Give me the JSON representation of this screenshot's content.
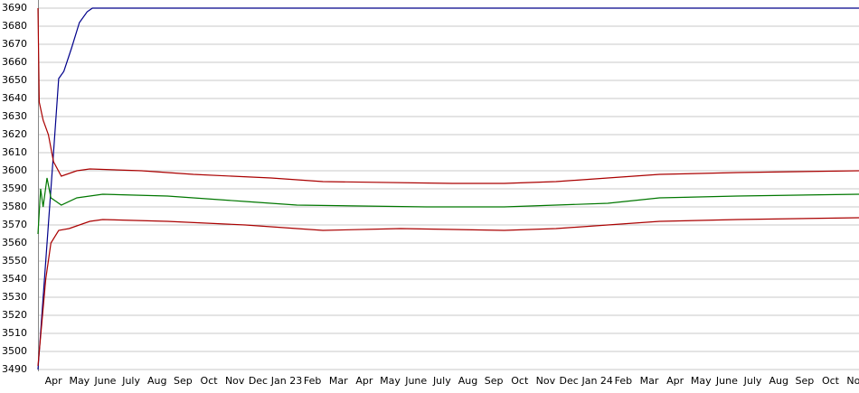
{
  "chart_data": {
    "type": "line",
    "xlim": [
      0,
      31.7
    ],
    "xticks": [
      {
        "value": 0.6,
        "label": "Apr"
      },
      {
        "value": 1.6,
        "label": "May"
      },
      {
        "value": 2.6,
        "label": "June"
      },
      {
        "value": 3.6,
        "label": "July"
      },
      {
        "value": 4.6,
        "label": "Aug"
      },
      {
        "value": 5.6,
        "label": "Sep"
      },
      {
        "value": 6.6,
        "label": "Oct"
      },
      {
        "value": 7.6,
        "label": "Nov"
      },
      {
        "value": 8.5,
        "label": "Dec"
      },
      {
        "value": 9.6,
        "label": "Jan 23"
      },
      {
        "value": 10.6,
        "label": "Feb"
      },
      {
        "value": 11.6,
        "label": "Mar"
      },
      {
        "value": 12.6,
        "label": "Apr"
      },
      {
        "value": 13.6,
        "label": "May"
      },
      {
        "value": 14.6,
        "label": "June"
      },
      {
        "value": 15.6,
        "label": "July"
      },
      {
        "value": 16.6,
        "label": "Aug"
      },
      {
        "value": 17.6,
        "label": "Sep"
      },
      {
        "value": 18.6,
        "label": "Oct"
      },
      {
        "value": 19.6,
        "label": "Nov"
      },
      {
        "value": 20.5,
        "label": "Dec"
      },
      {
        "value": 21.6,
        "label": "Jan 24"
      },
      {
        "value": 22.6,
        "label": "Feb"
      },
      {
        "value": 23.6,
        "label": "Mar"
      },
      {
        "value": 24.6,
        "label": "Apr"
      },
      {
        "value": 25.6,
        "label": "May"
      },
      {
        "value": 26.6,
        "label": "June"
      },
      {
        "value": 27.6,
        "label": "July"
      },
      {
        "value": 28.6,
        "label": "Aug"
      },
      {
        "value": 29.6,
        "label": "Sep"
      },
      {
        "value": 30.6,
        "label": "Oct"
      },
      {
        "value": 31.6,
        "label": "Nov"
      }
    ],
    "ylim": [
      3490,
      3690
    ],
    "yticks": [
      3490,
      3500,
      3510,
      3520,
      3530,
      3540,
      3550,
      3560,
      3570,
      3580,
      3590,
      3600,
      3610,
      3620,
      3630,
      3640,
      3650,
      3660,
      3670,
      3680,
      3690
    ],
    "grid": true,
    "series": [
      {
        "color": "#00008b",
        "x": [
          0,
          0.3,
          0.6,
          0.8,
          1.0,
          1.3,
          1.6,
          1.9,
          2.1,
          31.7
        ],
        "values": [
          3490,
          3550,
          3610,
          3651,
          3655,
          3668,
          3682,
          3688,
          3690,
          3690
        ]
      },
      {
        "color": "#aa0000",
        "x": [
          0,
          0.05,
          0.2,
          0.4,
          0.6,
          0.9,
          1.5,
          2,
          4,
          6,
          9,
          11,
          16,
          18,
          20,
          22,
          24,
          27,
          31.7
        ],
        "values": [
          3690,
          3638,
          3628,
          3620,
          3605,
          3597,
          3600,
          3601,
          3600,
          3598,
          3596,
          3594,
          3593,
          3593,
          3594,
          3596,
          3598,
          3599,
          3600
        ]
      },
      {
        "color": "#007700",
        "x": [
          0,
          0.1,
          0.2,
          0.35,
          0.5,
          0.7,
          0.9,
          1.5,
          2.5,
          5,
          8,
          10,
          15,
          18,
          20,
          22,
          24,
          27,
          31.7
        ],
        "values": [
          3565,
          3590,
          3580,
          3596,
          3585,
          3583,
          3581,
          3585,
          3587,
          3586,
          3583,
          3581,
          3580,
          3580,
          3581,
          3582,
          3585,
          3586,
          3587
        ]
      },
      {
        "color": "#aa0000",
        "x": [
          0,
          0.3,
          0.5,
          0.8,
          1.2,
          2,
          2.5,
          5,
          8,
          10,
          11,
          14,
          18,
          20,
          22,
          24,
          27,
          31.7
        ],
        "values": [
          3492,
          3540,
          3560,
          3567,
          3568,
          3572,
          3573,
          3572,
          3570,
          3568,
          3567,
          3568,
          3567,
          3568,
          3570,
          3572,
          3573,
          3574
        ]
      }
    ]
  }
}
